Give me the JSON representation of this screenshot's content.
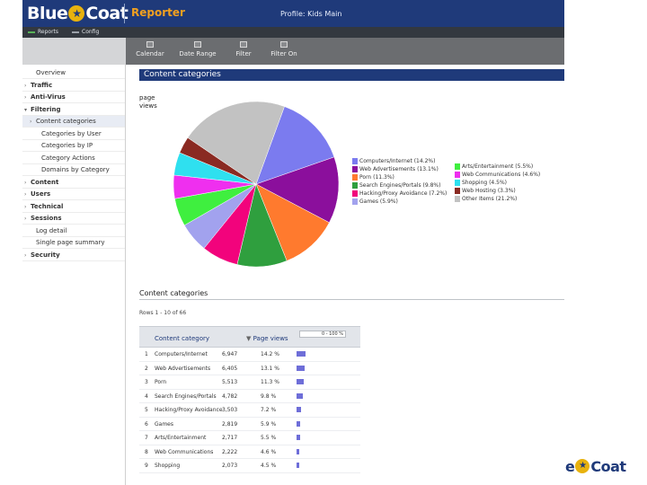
{
  "header": {
    "logo_left": "Blue",
    "logo_right": "Coat",
    "logo_star": "★",
    "app_title": "Reporter",
    "profile": "Profile: Kids Main"
  },
  "tabs": [
    {
      "label": "Reports",
      "color": "#58b158"
    },
    {
      "label": "Config",
      "color": "#9aa0a8"
    }
  ],
  "toolbar": [
    {
      "label": "Calendar",
      "icon": "calendar-icon"
    },
    {
      "label": "Date Range",
      "icon": "date-range-icon"
    },
    {
      "label": "Filter",
      "icon": "filter-icon"
    },
    {
      "label": "Filter On",
      "icon": "filter-on-icon"
    }
  ],
  "sidebar": [
    {
      "label": "Overview",
      "arrow": "",
      "indent": 1
    },
    {
      "label": "Traffic",
      "arrow": "›",
      "indent": 0
    },
    {
      "label": "Anti-Virus",
      "arrow": "›",
      "indent": 0
    },
    {
      "label": "Filtering",
      "arrow": "▾",
      "indent": 0
    },
    {
      "label": "Content categories",
      "arrow": "›",
      "indent": 1,
      "selected": true
    },
    {
      "label": "Categories by User",
      "arrow": "",
      "indent": 2
    },
    {
      "label": "Categories by IP",
      "arrow": "",
      "indent": 2
    },
    {
      "label": "Category Actions",
      "arrow": "",
      "indent": 2
    },
    {
      "label": "Domains by Category",
      "arrow": "",
      "indent": 2
    },
    {
      "label": "Content",
      "arrow": "›",
      "indent": 0
    },
    {
      "label": "Users",
      "arrow": "›",
      "indent": 0
    },
    {
      "label": "Technical",
      "arrow": "›",
      "indent": 0
    },
    {
      "label": "Sessions",
      "arrow": "›",
      "indent": 0
    },
    {
      "label": "Log detail",
      "arrow": "",
      "indent": 1
    },
    {
      "label": "Single page summary",
      "arrow": "",
      "indent": 1
    },
    {
      "label": "Security",
      "arrow": "›",
      "indent": 0
    }
  ],
  "main": {
    "title": "Content categories",
    "pv_label": "page views",
    "section_title": "Content categories",
    "rows_info": "Rows 1 - 10 of 66"
  },
  "chart_data": {
    "type": "pie",
    "unit": "page views",
    "slices": [
      {
        "label": "Computers/Internet",
        "value": 14.2,
        "color": "#7b7bef"
      },
      {
        "label": "Web Advertisements",
        "value": 13.1,
        "color": "#8b0f9c"
      },
      {
        "label": "Porn",
        "value": 11.3,
        "color": "#ff7a2e"
      },
      {
        "label": "Search Engines/Portals",
        "value": 9.8,
        "color": "#2f9f3e"
      },
      {
        "label": "Hacking/Proxy Avoidance",
        "value": 7.2,
        "color": "#f2037c"
      },
      {
        "label": "Games",
        "value": 5.9,
        "color": "#a2a2ee"
      },
      {
        "label": "Arts/Entertainment",
        "value": 5.5,
        "color": "#3fef3f"
      },
      {
        "label": "Web Communications",
        "value": 4.6,
        "color": "#ef2fef"
      },
      {
        "label": "Shopping",
        "value": 4.5,
        "color": "#2fe0ef"
      },
      {
        "label": "Web Hosting",
        "value": 3.3,
        "color": "#8a2a22"
      },
      {
        "label": "Other Items",
        "value": 21.2,
        "color": "#c2c2c2"
      }
    ]
  },
  "legend_left": [
    {
      "label": "Computers/Internet (14.2%)",
      "color": "#7b7bef"
    },
    {
      "label": "Web Advertisements (13.1%)",
      "color": "#8b0f9c"
    },
    {
      "label": "Porn (11.3%)",
      "color": "#ff7a2e"
    },
    {
      "label": "Search Engines/Portals (9.8%)",
      "color": "#2f9f3e"
    },
    {
      "label": "Hacking/Proxy Avoidance (7.2%)",
      "color": "#f2037c"
    },
    {
      "label": "Games (5.9%)",
      "color": "#a2a2ee"
    }
  ],
  "legend_right": [
    {
      "label": "Arts/Entertainment (5.5%)",
      "color": "#3fef3f"
    },
    {
      "label": "Web Communications (4.6%)",
      "color": "#ef2fef"
    },
    {
      "label": "Shopping (4.5%)",
      "color": "#2fe0ef"
    },
    {
      "label": "Web Hosting (3.3%)",
      "color": "#8a2a22"
    },
    {
      "label": "Other Items (21.2%)",
      "color": "#c2c2c2"
    }
  ],
  "table": {
    "col_category": "Content category",
    "col_views": "Page views",
    "sort_marker": "▼",
    "scale_label": "0 - 100 %",
    "bar_color": "#6e6ed8",
    "rows": [
      {
        "rank": "1",
        "category": "Computers/Internet",
        "views": "6,947",
        "pct": "14.2 %",
        "bar": 14.2
      },
      {
        "rank": "2",
        "category": "Web Advertisements",
        "views": "6,405",
        "pct": "13.1 %",
        "bar": 13.1
      },
      {
        "rank": "3",
        "category": "Porn",
        "views": "5,513",
        "pct": "11.3 %",
        "bar": 11.3
      },
      {
        "rank": "4",
        "category": "Search Engines/Portals",
        "views": "4,782",
        "pct": "9.8 %",
        "bar": 9.8
      },
      {
        "rank": "5",
        "category": "Hacking/Proxy Avoidance",
        "views": "3,503",
        "pct": "7.2 %",
        "bar": 7.2
      },
      {
        "rank": "6",
        "category": "Games",
        "views": "2,819",
        "pct": "5.9 %",
        "bar": 5.9
      },
      {
        "rank": "7",
        "category": "Arts/Entertainment",
        "views": "2,717",
        "pct": "5.5 %",
        "bar": 5.5
      },
      {
        "rank": "8",
        "category": "Web Communications",
        "views": "2,222",
        "pct": "4.6 %",
        "bar": 4.6
      },
      {
        "rank": "9",
        "category": "Shopping",
        "views": "2,073",
        "pct": "4.5 %",
        "bar": 4.5
      }
    ]
  }
}
